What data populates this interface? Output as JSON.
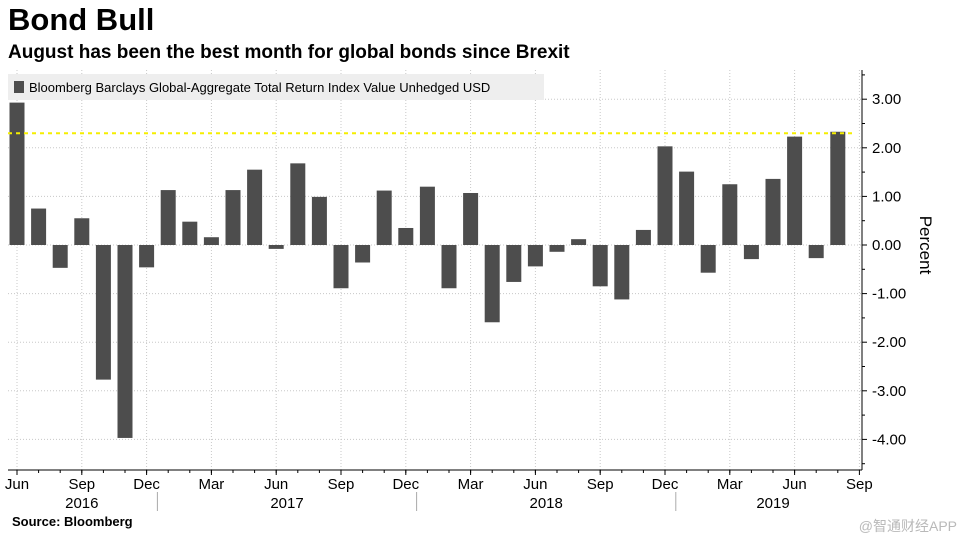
{
  "header": {
    "title": "Bond Bull",
    "subtitle": "August has been the best month for global bonds since Brexit"
  },
  "footer": {
    "source": "Source: Bloomberg",
    "watermark": "@智通财经APP"
  },
  "chart_data": {
    "type": "bar",
    "legend": "Bloomberg Barclays Global-Aggregate Total Return Index Value Unhedged USD",
    "legend_position": "top-left",
    "ylabel": "Percent",
    "ylim": [
      -4.5,
      3.6
    ],
    "yticks": [
      3.0,
      2.0,
      1.0,
      0.0,
      -1.0,
      -2.0,
      -3.0,
      -4.0
    ],
    "ytick_labels": [
      "3.00",
      "2.00",
      "1.00",
      "0.00",
      "-1.00",
      "-2.00",
      "-3.00",
      "-4.00"
    ],
    "y_axis_side": "right",
    "grid": true,
    "bar_color": "#4d4d4d",
    "reference_line": {
      "value": 2.3,
      "color": "#f5ee00",
      "style": "dashed"
    },
    "categories": [
      "Jun 2016",
      "Jul 2016",
      "Aug 2016",
      "Sep 2016",
      "Oct 2016",
      "Nov 2016",
      "Dec 2016",
      "Jan 2017",
      "Feb 2017",
      "Mar 2017",
      "Apr 2017",
      "May 2017",
      "Jun 2017",
      "Jul 2017",
      "Aug 2017",
      "Sep 2017",
      "Oct 2017",
      "Nov 2017",
      "Dec 2017",
      "Jan 2018",
      "Feb 2018",
      "Mar 2018",
      "Apr 2018",
      "May 2018",
      "Jun 2018",
      "Jul 2018",
      "Aug 2018",
      "Sep 2018",
      "Oct 2018",
      "Nov 2018",
      "Dec 2018",
      "Jan 2019",
      "Feb 2019",
      "Mar 2019",
      "Apr 2019",
      "May 2019",
      "Jun 2019",
      "Jul 2019",
      "Aug 2019"
    ],
    "values": [
      2.93,
      0.75,
      -0.47,
      0.55,
      -2.77,
      -3.97,
      -0.46,
      1.13,
      0.48,
      0.16,
      1.13,
      1.55,
      -0.08,
      1.68,
      0.99,
      -0.89,
      -0.36,
      1.12,
      0.35,
      1.2,
      -0.89,
      1.07,
      -1.59,
      -0.76,
      -0.44,
      -0.14,
      0.12,
      -0.85,
      -1.12,
      0.31,
      2.03,
      1.51,
      -0.57,
      1.25,
      -0.29,
      1.36,
      2.23,
      -0.27,
      2.33
    ],
    "month_ticks": [
      {
        "index": 0,
        "label": "Jun"
      },
      {
        "index": 3,
        "label": "Sep"
      },
      {
        "index": 6,
        "label": "Dec"
      },
      {
        "index": 9,
        "label": "Mar"
      },
      {
        "index": 12,
        "label": "Jun"
      },
      {
        "index": 15,
        "label": "Sep"
      },
      {
        "index": 18,
        "label": "Dec"
      },
      {
        "index": 21,
        "label": "Mar"
      },
      {
        "index": 24,
        "label": "Jun"
      },
      {
        "index": 27,
        "label": "Sep"
      },
      {
        "index": 30,
        "label": "Dec"
      },
      {
        "index": 33,
        "label": "Mar"
      },
      {
        "index": 36,
        "label": "Jun"
      },
      {
        "index": 39,
        "label": "Sep"
      }
    ],
    "year_labels": [
      {
        "label": "2016",
        "center_index": 3
      },
      {
        "label": "2017",
        "center_index": 12.5
      },
      {
        "label": "2018",
        "center_index": 24.5
      },
      {
        "label": "2019",
        "center_index": 35
      }
    ],
    "year_boundaries": [
      6.5,
      18.5,
      30.5
    ]
  }
}
